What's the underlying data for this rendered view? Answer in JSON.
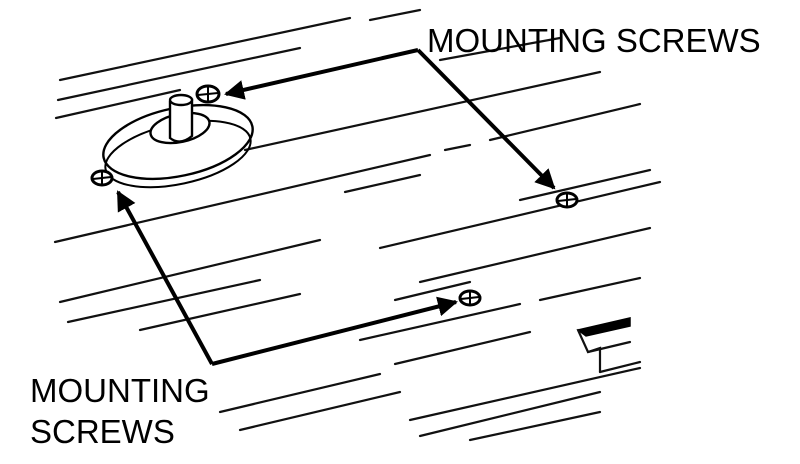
{
  "diagram": {
    "labels": {
      "top_right": "MOUNTING SCREWS",
      "bottom_left_line1": "MOUNTING",
      "bottom_left_line2": "SCREWS"
    },
    "colors": {
      "ink": "#000000",
      "background": "#ffffff"
    },
    "icons": [
      "screw-head-icon",
      "shaft-boss",
      "arrowhead-icon"
    ]
  }
}
